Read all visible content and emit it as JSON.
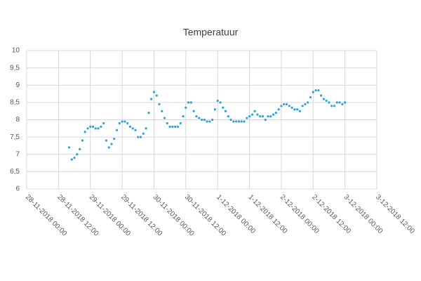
{
  "chart_data": {
    "type": "scatter",
    "title": "Temperatuur",
    "xlim": [
      "28-11-2018 00:00",
      "3-12-2018 12:00"
    ],
    "xticks": [
      "28-11-2018 00:00",
      "28-11-2018 12:00",
      "29-11-2018 00:00",
      "29-11-2018 12:00",
      "30-11-2018 00:00",
      "30-11-2018 12:00",
      "1-12-2018 00:00",
      "1-12-2018 12:00",
      "2-12-2018 00:00",
      "2-12-2018 12:00",
      "3-12-2018 00:00",
      "3-12-2018 12:00"
    ],
    "ylim": [
      6,
      10
    ],
    "yticks": [
      6,
      {
        "value": 6.5,
        "label": "6,5"
      },
      7,
      {
        "value": 7.5,
        "label": "7,5"
      },
      8,
      {
        "value": 8.5,
        "label": "8,5"
      },
      9,
      {
        "value": 9.5,
        "label": "9,5"
      },
      10
    ],
    "grid": true,
    "color": "#29a3d9",
    "x": [
      "28-11-2018 16:00",
      "28-11-2018 17:00",
      "28-11-2018 18:00",
      "28-11-2018 19:00",
      "28-11-2018 20:00",
      "28-11-2018 21:00",
      "28-11-2018 22:00",
      "28-11-2018 23:00",
      "29-11-2018 00:00",
      "29-11-2018 01:00",
      "29-11-2018 02:00",
      "29-11-2018 03:00",
      "29-11-2018 04:00",
      "29-11-2018 05:00",
      "29-11-2018 06:00",
      "29-11-2018 07:00",
      "29-11-2018 08:00",
      "29-11-2018 09:00",
      "29-11-2018 10:00",
      "29-11-2018 11:00",
      "29-11-2018 12:00",
      "29-11-2018 13:00",
      "29-11-2018 14:00",
      "29-11-2018 15:00",
      "29-11-2018 16:00",
      "29-11-2018 17:00",
      "29-11-2018 18:00",
      "29-11-2018 19:00",
      "29-11-2018 20:00",
      "29-11-2018 21:00",
      "29-11-2018 22:00",
      "29-11-2018 23:00",
      "30-11-2018 00:00",
      "30-11-2018 01:00",
      "30-11-2018 02:00",
      "30-11-2018 03:00",
      "30-11-2018 04:00",
      "30-11-2018 05:00",
      "30-11-2018 06:00",
      "30-11-2018 07:00",
      "30-11-2018 08:00",
      "30-11-2018 09:00",
      "30-11-2018 10:00",
      "30-11-2018 11:00",
      "30-11-2018 12:00",
      "30-11-2018 13:00",
      "30-11-2018 14:00",
      "30-11-2018 15:00",
      "30-11-2018 16:00",
      "30-11-2018 17:00",
      "30-11-2018 18:00",
      "30-11-2018 19:00",
      "30-11-2018 20:00",
      "30-11-2018 21:00",
      "30-11-2018 22:00",
      "30-11-2018 23:00",
      "1-12-2018 00:00",
      "1-12-2018 01:00",
      "1-12-2018 02:00",
      "1-12-2018 03:00",
      "1-12-2018 04:00",
      "1-12-2018 05:00",
      "1-12-2018 06:00",
      "1-12-2018 07:00",
      "1-12-2018 08:00",
      "1-12-2018 09:00",
      "1-12-2018 10:00",
      "1-12-2018 11:00",
      "1-12-2018 12:00",
      "1-12-2018 13:00",
      "1-12-2018 14:00",
      "1-12-2018 15:00",
      "1-12-2018 16:00",
      "1-12-2018 17:00",
      "1-12-2018 18:00",
      "1-12-2018 19:00",
      "1-12-2018 20:00",
      "1-12-2018 21:00",
      "1-12-2018 22:00",
      "1-12-2018 23:00",
      "2-12-2018 00:00",
      "2-12-2018 01:00",
      "2-12-2018 02:00",
      "2-12-2018 03:00",
      "2-12-2018 04:00",
      "2-12-2018 05:00",
      "2-12-2018 06:00",
      "2-12-2018 07:00",
      "2-12-2018 08:00",
      "2-12-2018 09:00",
      "2-12-2018 10:00",
      "2-12-2018 11:00",
      "2-12-2018 12:00",
      "2-12-2018 13:00",
      "2-12-2018 14:00",
      "2-12-2018 15:00",
      "2-12-2018 16:00",
      "2-12-2018 17:00",
      "2-12-2018 18:00",
      "2-12-2018 19:00",
      "2-12-2018 20:00",
      "2-12-2018 21:00",
      "2-12-2018 22:00",
      "2-12-2018 23:00",
      "3-12-2018 00:00"
    ],
    "values": [
      7.2,
      6.85,
      6.9,
      7.0,
      7.15,
      7.4,
      7.65,
      7.75,
      7.8,
      7.8,
      7.75,
      7.75,
      7.8,
      7.9,
      7.4,
      7.2,
      7.3,
      7.45,
      7.7,
      7.9,
      7.95,
      7.95,
      7.9,
      7.8,
      7.75,
      7.7,
      7.5,
      7.5,
      7.6,
      7.75,
      8.2,
      8.6,
      8.8,
      8.7,
      8.45,
      8.25,
      8.05,
      7.9,
      7.8,
      7.8,
      7.8,
      7.8,
      7.9,
      8.1,
      8.35,
      8.5,
      8.5,
      8.25,
      8.1,
      8.05,
      8.0,
      8.0,
      7.95,
      7.95,
      8.0,
      8.3,
      8.55,
      8.5,
      8.35,
      8.25,
      8.1,
      8.0,
      7.95,
      7.95,
      7.95,
      7.95,
      7.95,
      8.05,
      8.1,
      8.15,
      8.25,
      8.15,
      8.1,
      8.1,
      8.0,
      8.1,
      8.1,
      8.15,
      8.2,
      8.3,
      8.4,
      8.45,
      8.45,
      8.4,
      8.35,
      8.3,
      8.3,
      8.25,
      8.4,
      8.45,
      8.5,
      8.65,
      8.8,
      8.85,
      8.85,
      8.7,
      8.6,
      8.55,
      8.5,
      8.4,
      8.4,
      8.5,
      8.5,
      8.45,
      8.5
    ]
  }
}
